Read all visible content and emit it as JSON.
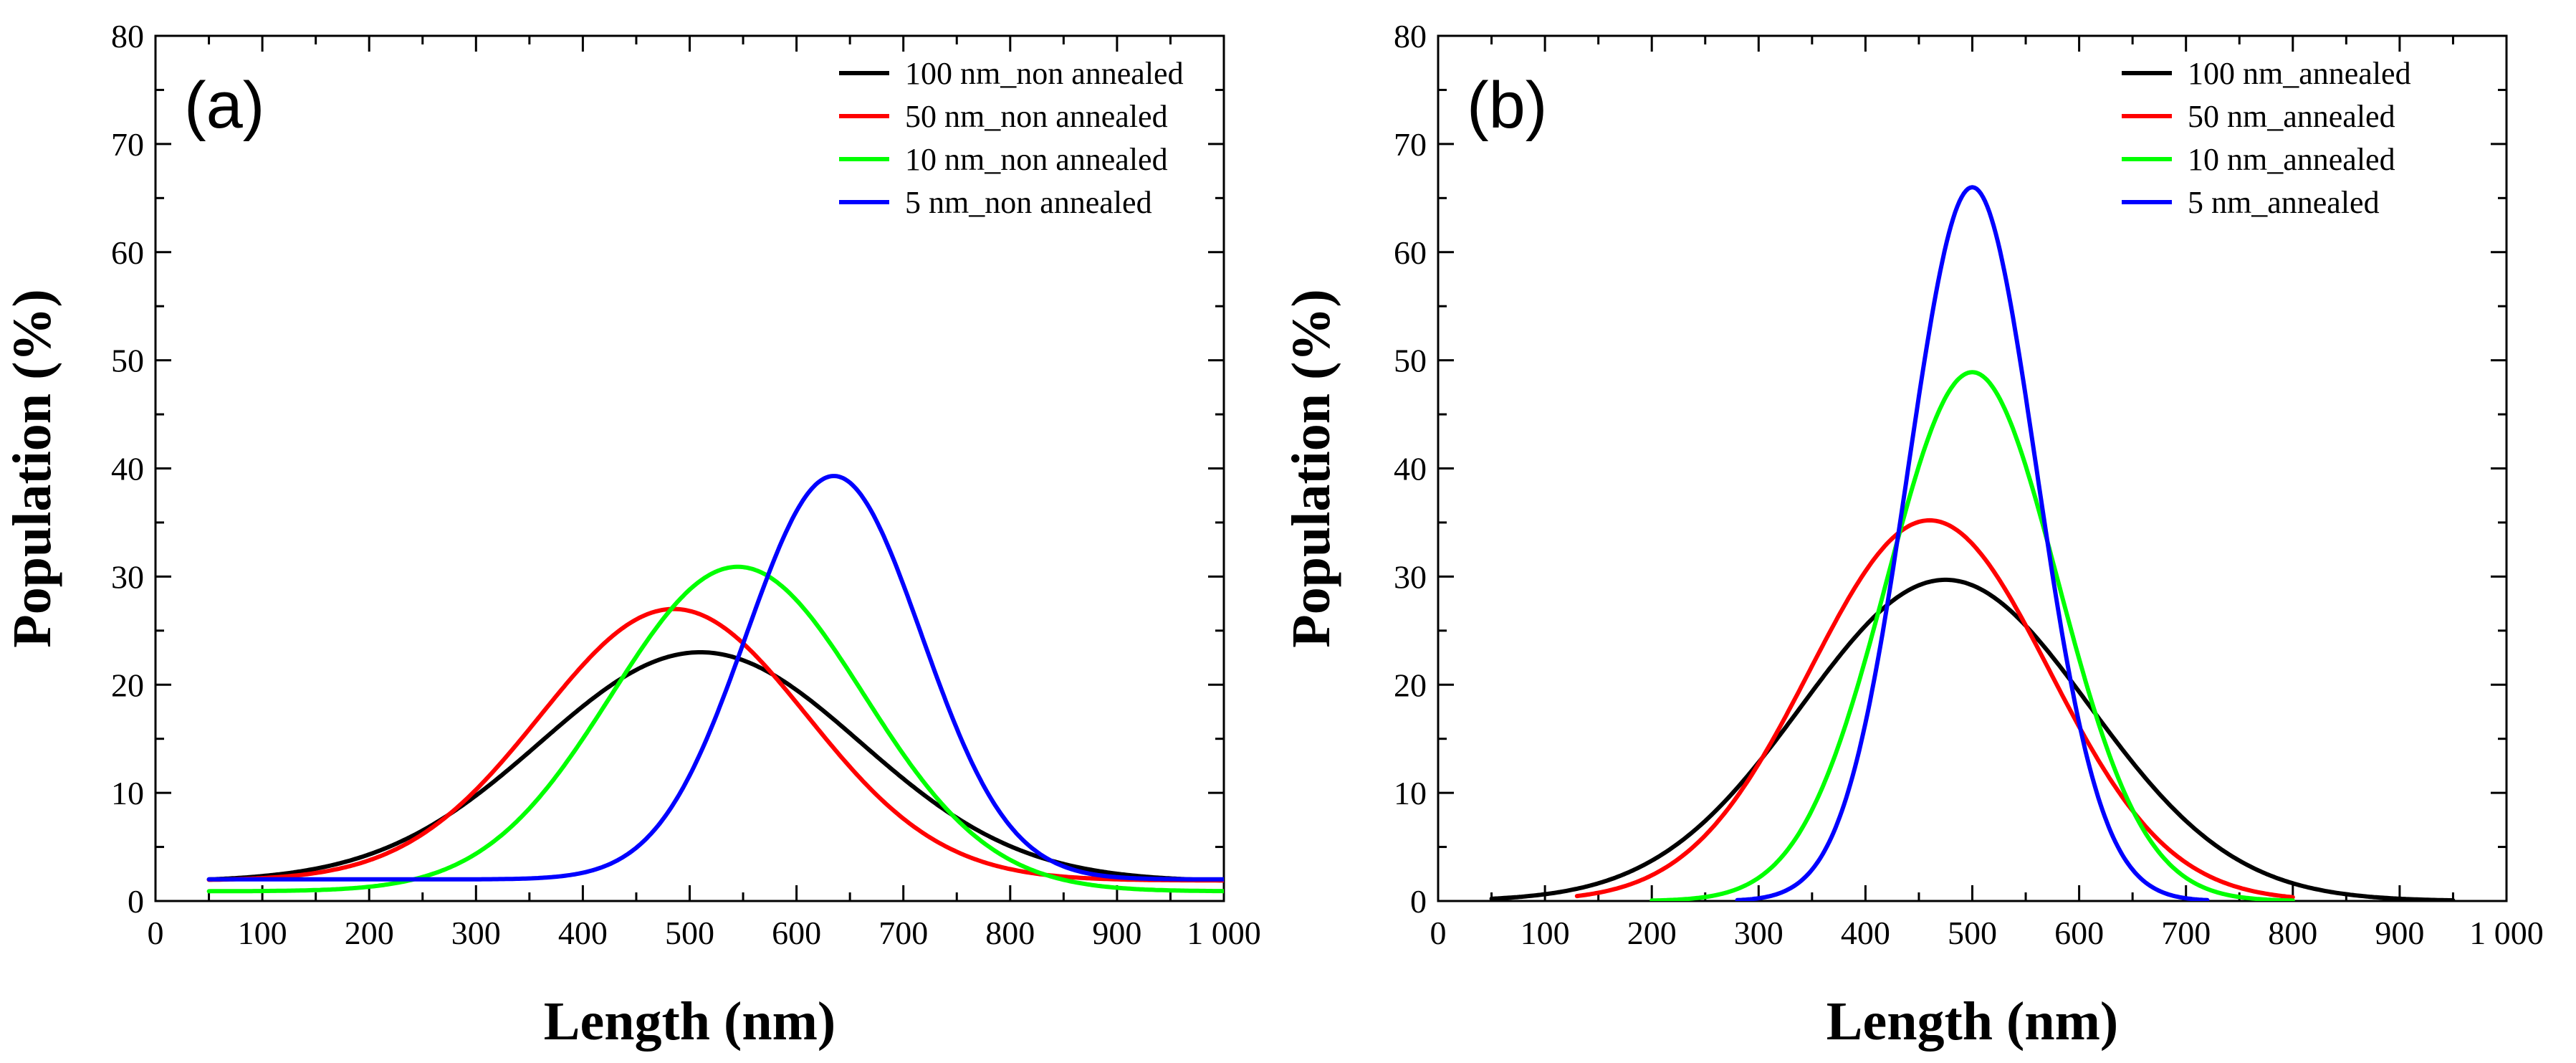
{
  "chart_data": [
    {
      "type": "line",
      "panel_label": "(a)",
      "xlabel": "Length (nm)",
      "ylabel": "Population (%)",
      "xlim": [
        0,
        1000
      ],
      "ylim": [
        0,
        80
      ],
      "x_ticks": [
        0,
        100,
        200,
        300,
        400,
        500,
        600,
        700,
        800,
        900,
        1000
      ],
      "x_tick_labels": [
        "0",
        "100",
        "200",
        "300",
        "400",
        "500",
        "600",
        "700",
        "800",
        "900",
        "1 000"
      ],
      "y_ticks": [
        0,
        10,
        20,
        30,
        40,
        50,
        60,
        70,
        80
      ],
      "y_tick_labels": [
        "0",
        "10",
        "20",
        "30",
        "40",
        "50",
        "60",
        "70",
        "80"
      ],
      "legend_position": "top-right",
      "series": [
        {
          "name": "100 nm_non annealed",
          "color": "#000000",
          "x_range": [
            50,
            1000
          ],
          "baseline": 1.8,
          "amplitude": 21.2,
          "center": 510,
          "sigma": 150
        },
        {
          "name": "50 nm_non annealed",
          "color": "#ff0000",
          "x_range": [
            50,
            1000
          ],
          "baseline": 1.9,
          "amplitude": 25.1,
          "center": 485,
          "sigma": 125
        },
        {
          "name": "10 nm_non annealed",
          "color": "#00ff00",
          "x_range": [
            50,
            1000
          ],
          "baseline": 0.9,
          "amplitude": 30.0,
          "center": 545,
          "sigma": 118
        },
        {
          "name": "5 nm_non annealed",
          "color": "#0000ff",
          "x_range": [
            50,
            1000
          ],
          "baseline": 2.0,
          "amplitude": 37.3,
          "center": 635,
          "sigma": 82
        }
      ]
    },
    {
      "type": "line",
      "panel_label": "(b)",
      "xlabel": "Length (nm)",
      "ylabel": "Population (%)",
      "xlim": [
        0,
        1000
      ],
      "ylim": [
        0,
        80
      ],
      "x_ticks": [
        0,
        100,
        200,
        300,
        400,
        500,
        600,
        700,
        800,
        900,
        1000
      ],
      "x_tick_labels": [
        "0",
        "100",
        "200",
        "300",
        "400",
        "500",
        "600",
        "700",
        "800",
        "900",
        "1 000"
      ],
      "y_ticks": [
        0,
        10,
        20,
        30,
        40,
        50,
        60,
        70,
        80
      ],
      "y_tick_labels": [
        "0",
        "10",
        "20",
        "30",
        "40",
        "50",
        "60",
        "70",
        "80"
      ],
      "legend_position": "top-right",
      "series": [
        {
          "name": "100 nm_annealed",
          "color": "#000000",
          "x_range": [
            50,
            950
          ],
          "baseline": 0,
          "amplitude": 29.7,
          "center": 475,
          "sigma": 135
        },
        {
          "name": "50 nm_annealed",
          "color": "#ff0000",
          "x_range": [
            130,
            800
          ],
          "baseline": 0,
          "amplitude": 35.2,
          "center": 460,
          "sigma": 112
        },
        {
          "name": "10 nm_annealed",
          "color": "#00ff00",
          "x_range": [
            200,
            800
          ],
          "baseline": 0,
          "amplitude": 48.9,
          "center": 500,
          "sigma": 80
        },
        {
          "name": "5 nm_annealed",
          "color": "#0000ff",
          "x_range": [
            280,
            720
          ],
          "baseline": 0,
          "amplitude": 66.0,
          "center": 500,
          "sigma": 60
        }
      ]
    }
  ]
}
